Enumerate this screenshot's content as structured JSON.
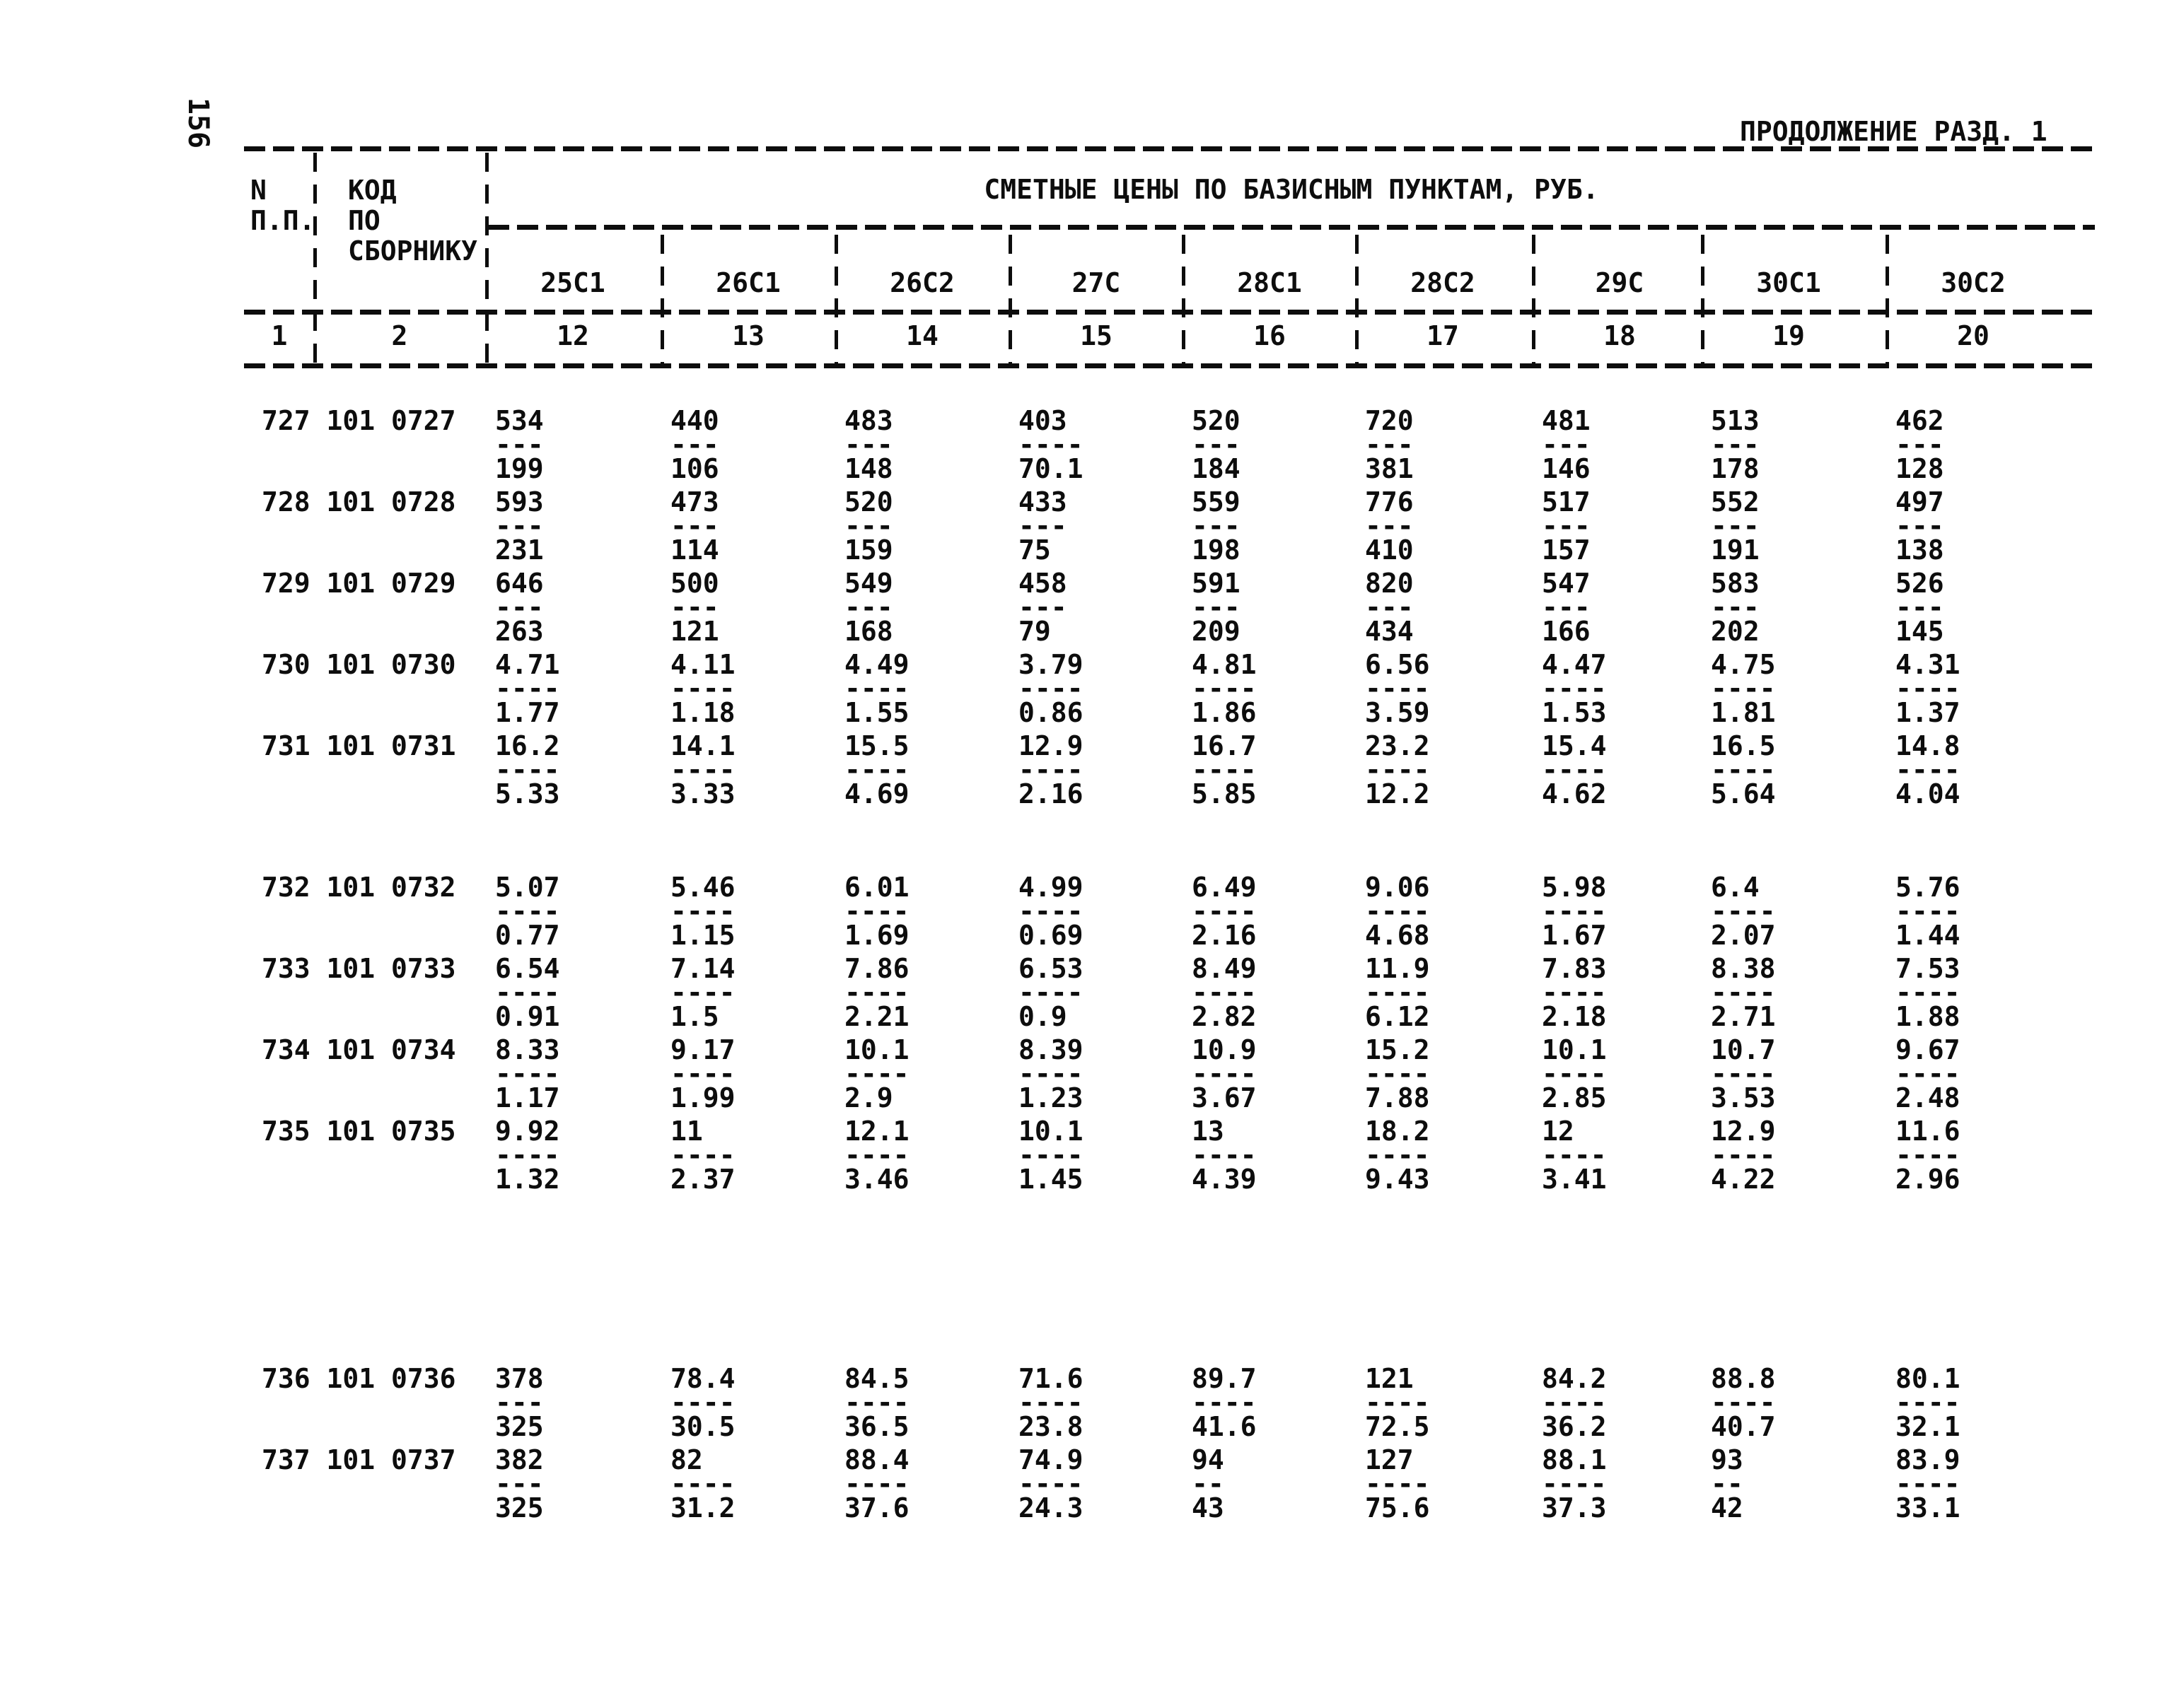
{
  "page": {
    "number": "156",
    "header": "ПРОДОЛЖЕНИЕ РАЗД. 1"
  },
  "table": {
    "group_header": "СМЕТНЫЕ ЦЕНЫ ПО БАЗИСНЫМ ПУНКТАМ, РУБ.",
    "row_header": {
      "col1": [
        "N",
        "П.П."
      ],
      "col2": [
        "КОД",
        "ПО",
        "СБОРНИКУ"
      ]
    },
    "price_columns": [
      "25С1",
      "26С1",
      "26С2",
      "27С",
      "28С1",
      "28С2",
      "29С",
      "30С1",
      "30С2"
    ],
    "index_row": [
      "1",
      "2",
      "12",
      "13",
      "14",
      "15",
      "16",
      "17",
      "18",
      "19",
      "20"
    ],
    "rows": [
      {
        "num": "727",
        "code": "101 0727",
        "values": [
          [
            "534",
            "199"
          ],
          [
            "440",
            "106"
          ],
          [
            "483",
            "148"
          ],
          [
            "403",
            "70.1"
          ],
          [
            "520",
            "184"
          ],
          [
            "720",
            "381"
          ],
          [
            "481",
            "146"
          ],
          [
            "513",
            "178"
          ],
          [
            "462",
            "128"
          ]
        ]
      },
      {
        "num": "728",
        "code": "101 0728",
        "values": [
          [
            "593",
            "231"
          ],
          [
            "473",
            "114"
          ],
          [
            "520",
            "159"
          ],
          [
            "433",
            "75"
          ],
          [
            "559",
            "198"
          ],
          [
            "776",
            "410"
          ],
          [
            "517",
            "157"
          ],
          [
            "552",
            "191"
          ],
          [
            "497",
            "138"
          ]
        ]
      },
      {
        "num": "729",
        "code": "101 0729",
        "values": [
          [
            "646",
            "263"
          ],
          [
            "500",
            "121"
          ],
          [
            "549",
            "168"
          ],
          [
            "458",
            "79"
          ],
          [
            "591",
            "209"
          ],
          [
            "820",
            "434"
          ],
          [
            "547",
            "166"
          ],
          [
            "583",
            "202"
          ],
          [
            "526",
            "145"
          ]
        ]
      },
      {
        "num": "730",
        "code": "101 0730",
        "values": [
          [
            "4.71",
            "1.77"
          ],
          [
            "4.11",
            "1.18"
          ],
          [
            "4.49",
            "1.55"
          ],
          [
            "3.79",
            "0.86"
          ],
          [
            "4.81",
            "1.86"
          ],
          [
            "6.56",
            "3.59"
          ],
          [
            "4.47",
            "1.53"
          ],
          [
            "4.75",
            "1.81"
          ],
          [
            "4.31",
            "1.37"
          ]
        ]
      },
      {
        "num": "731",
        "code": "101 0731",
        "gap_after": "small",
        "values": [
          [
            "16.2",
            "5.33"
          ],
          [
            "14.1",
            "3.33"
          ],
          [
            "15.5",
            "4.69"
          ],
          [
            "12.9",
            "2.16"
          ],
          [
            "16.7",
            "5.85"
          ],
          [
            "23.2",
            "12.2"
          ],
          [
            "15.4",
            "4.62"
          ],
          [
            "16.5",
            "5.64"
          ],
          [
            "14.8",
            "4.04"
          ]
        ]
      },
      {
        "num": "732",
        "code": "101 0732",
        "values": [
          [
            "5.07",
            "0.77"
          ],
          [
            "5.46",
            "1.15"
          ],
          [
            "6.01",
            "1.69"
          ],
          [
            "4.99",
            "0.69"
          ],
          [
            "6.49",
            "2.16"
          ],
          [
            "9.06",
            "4.68"
          ],
          [
            "5.98",
            "1.67"
          ],
          [
            "6.4",
            "2.07"
          ],
          [
            "5.76",
            "1.44"
          ]
        ]
      },
      {
        "num": "733",
        "code": "101 0733",
        "values": [
          [
            "6.54",
            "0.91"
          ],
          [
            "7.14",
            "1.5"
          ],
          [
            "7.86",
            "2.21"
          ],
          [
            "6.53",
            "0.9"
          ],
          [
            "8.49",
            "2.82"
          ],
          [
            "11.9",
            "6.12"
          ],
          [
            "7.83",
            "2.18"
          ],
          [
            "8.38",
            "2.71"
          ],
          [
            "7.53",
            "1.88"
          ]
        ]
      },
      {
        "num": "734",
        "code": "101 0734",
        "values": [
          [
            "8.33",
            "1.17"
          ],
          [
            "9.17",
            "1.99"
          ],
          [
            "10.1",
            "2.9"
          ],
          [
            "8.39",
            "1.23"
          ],
          [
            "10.9",
            "3.67"
          ],
          [
            "15.2",
            "7.88"
          ],
          [
            "10.1",
            "2.85"
          ],
          [
            "10.7",
            "3.53"
          ],
          [
            "9.67",
            "2.48"
          ]
        ]
      },
      {
        "num": "735",
        "code": "101 0735",
        "gap_after": "large",
        "values": [
          [
            "9.92",
            "1.32"
          ],
          [
            "11",
            "2.37"
          ],
          [
            "12.1",
            "3.46"
          ],
          [
            "10.1",
            "1.45"
          ],
          [
            "13",
            "4.39"
          ],
          [
            "18.2",
            "9.43"
          ],
          [
            "12",
            "3.41"
          ],
          [
            "12.9",
            "4.22"
          ],
          [
            "11.6",
            "2.96"
          ]
        ]
      },
      {
        "num": "736",
        "code": "101 0736",
        "values": [
          [
            "378",
            "325"
          ],
          [
            "78.4",
            "30.5"
          ],
          [
            "84.5",
            "36.5"
          ],
          [
            "71.6",
            "23.8"
          ],
          [
            "89.7",
            "41.6"
          ],
          [
            "121",
            "72.5"
          ],
          [
            "84.2",
            "36.2"
          ],
          [
            "88.8",
            "40.7"
          ],
          [
            "80.1",
            "32.1"
          ]
        ]
      },
      {
        "num": "737",
        "code": "101 0737",
        "values": [
          [
            "382",
            "325"
          ],
          [
            "82",
            "31.2"
          ],
          [
            "88.4",
            "37.6"
          ],
          [
            "74.9",
            "24.3"
          ],
          [
            "94",
            "43"
          ],
          [
            "127",
            "75.6"
          ],
          [
            "88.1",
            "37.3"
          ],
          [
            "93",
            "42"
          ],
          [
            "83.9",
            "33.1"
          ]
        ]
      }
    ]
  }
}
